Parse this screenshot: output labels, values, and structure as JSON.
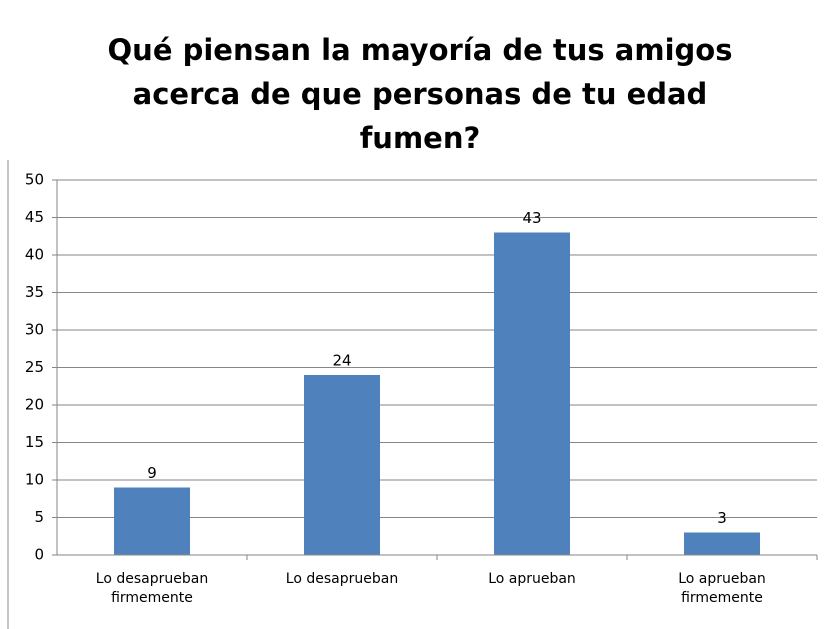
{
  "chart_data": {
    "type": "bar",
    "title": "Qué piensan la mayoría de tus amigos acerca de que personas de tu edad fumen?",
    "categories": [
      "Lo desaprueban firmemente",
      "Lo desaprueban",
      "Lo aprueban",
      "Lo aprueban firmemente"
    ],
    "values": [
      9,
      24,
      43,
      3
    ],
    "color": "#4f81bd",
    "ylim": [
      0,
      50
    ],
    "yticks": [
      0,
      5,
      10,
      15,
      20,
      25,
      30,
      35,
      40,
      45,
      50
    ],
    "grid": true,
    "data_labels": true
  }
}
